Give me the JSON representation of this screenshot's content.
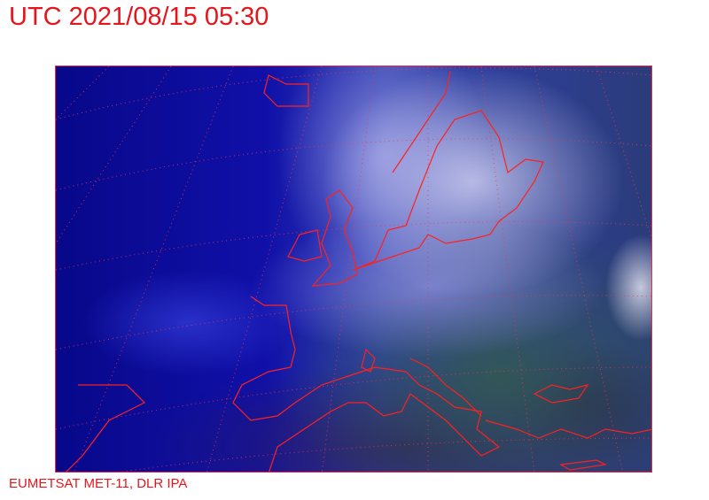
{
  "header": {
    "title": "UTC 2021/08/15 05:30"
  },
  "footer": {
    "credit": "EUMETSAT MET-11, DLR IPA"
  },
  "map": {
    "type": "satellite-image",
    "region": "Europe",
    "coastline_color": "#ff2020",
    "graticule_color": "#ff3050",
    "title_color": "#e8141c"
  }
}
